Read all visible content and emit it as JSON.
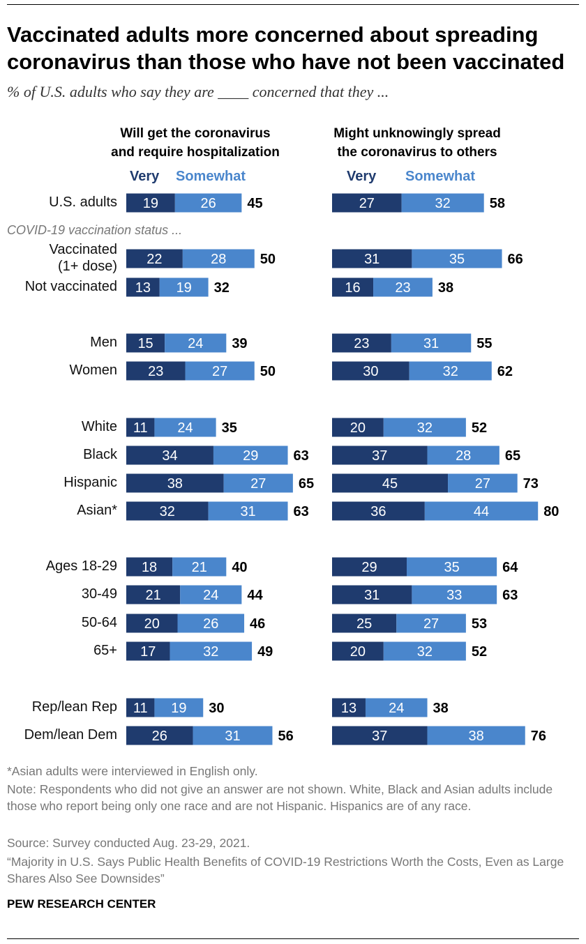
{
  "title": "Vaccinated adults more concerned about spreading coronavirus than those who have not been vaccinated",
  "subtitle": "% of U.S. adults who say they are ____ concerned that they ...",
  "colors": {
    "very": "#1f3b6e",
    "somewhat": "#4a86cc"
  },
  "chart_data": {
    "type": "bar",
    "stacked": true,
    "orientation": "horizontal",
    "panels": [
      {
        "title": "Will get the coronavirus and require hospitalization",
        "title_lines": [
          "Will get the coronavirus",
          "and require hospitalization"
        ]
      },
      {
        "title": "Might unknowingly spread the coronavirus to others",
        "title_lines": [
          "Might unknowingly spread",
          "the coronavirus to others"
        ]
      }
    ],
    "legend": [
      "Very",
      "Somewhat"
    ],
    "group_label": "COVID-19 vaccination status ...",
    "categories": [
      "U.S. adults",
      "Vaccinated (1+ dose)",
      "Not vaccinated",
      "Men",
      "Women",
      "White",
      "Black",
      "Hispanic",
      "Asian*",
      "Ages 18-29",
      "30-49",
      "50-64",
      "65+",
      "Rep/lean Rep",
      "Dem/lean Dem"
    ],
    "rows": [
      {
        "label": [
          "U.S. adults"
        ],
        "hosp": {
          "very": 19,
          "somewhat": 26,
          "total": 45
        },
        "spread": {
          "very": 27,
          "somewhat": 32,
          "total": 58
        }
      },
      {
        "label": [
          "Vaccinated",
          "(1+ dose)"
        ],
        "hosp": {
          "very": 22,
          "somewhat": 28,
          "total": 50
        },
        "spread": {
          "very": 31,
          "somewhat": 35,
          "total": 66
        }
      },
      {
        "label": [
          "Not vaccinated"
        ],
        "hosp": {
          "very": 13,
          "somewhat": 19,
          "total": 32
        },
        "spread": {
          "very": 16,
          "somewhat": 23,
          "total": 38
        }
      },
      {
        "label": [
          "Men"
        ],
        "hosp": {
          "very": 15,
          "somewhat": 24,
          "total": 39
        },
        "spread": {
          "very": 23,
          "somewhat": 31,
          "total": 55
        }
      },
      {
        "label": [
          "Women"
        ],
        "hosp": {
          "very": 23,
          "somewhat": 27,
          "total": 50
        },
        "spread": {
          "very": 30,
          "somewhat": 32,
          "total": 62
        }
      },
      {
        "label": [
          "White"
        ],
        "hosp": {
          "very": 11,
          "somewhat": 24,
          "total": 35
        },
        "spread": {
          "very": 20,
          "somewhat": 32,
          "total": 52
        }
      },
      {
        "label": [
          "Black"
        ],
        "hosp": {
          "very": 34,
          "somewhat": 29,
          "total": 63
        },
        "spread": {
          "very": 37,
          "somewhat": 28,
          "total": 65
        }
      },
      {
        "label": [
          "Hispanic"
        ],
        "hosp": {
          "very": 38,
          "somewhat": 27,
          "total": 65
        },
        "spread": {
          "very": 45,
          "somewhat": 27,
          "total": 73
        }
      },
      {
        "label": [
          "Asian*"
        ],
        "hosp": {
          "very": 32,
          "somewhat": 31,
          "total": 63
        },
        "spread": {
          "very": 36,
          "somewhat": 44,
          "total": 80
        }
      },
      {
        "label": [
          "Ages 18-29"
        ],
        "hosp": {
          "very": 18,
          "somewhat": 21,
          "total": 40
        },
        "spread": {
          "very": 29,
          "somewhat": 35,
          "total": 64
        }
      },
      {
        "label": [
          "30-49"
        ],
        "hosp": {
          "very": 21,
          "somewhat": 24,
          "total": 44
        },
        "spread": {
          "very": 31,
          "somewhat": 33,
          "total": 63
        }
      },
      {
        "label": [
          "50-64"
        ],
        "hosp": {
          "very": 20,
          "somewhat": 26,
          "total": 46
        },
        "spread": {
          "very": 25,
          "somewhat": 27,
          "total": 53
        }
      },
      {
        "label": [
          "65+"
        ],
        "hosp": {
          "very": 17,
          "somewhat": 32,
          "total": 49
        },
        "spread": {
          "very": 20,
          "somewhat": 32,
          "total": 52
        }
      },
      {
        "label": [
          "Rep/lean Rep"
        ],
        "hosp": {
          "very": 11,
          "somewhat": 19,
          "total": 30
        },
        "spread": {
          "very": 13,
          "somewhat": 24,
          "total": 38
        }
      },
      {
        "label": [
          "Dem/lean Dem"
        ],
        "hosp": {
          "very": 26,
          "somewhat": 31,
          "total": 56
        },
        "spread": {
          "very": 37,
          "somewhat": 38,
          "total": 76
        }
      }
    ]
  },
  "footer": {
    "asian_note": "*Asian adults were interviewed in English only.",
    "note": "Note: Respondents who did not give an answer are not shown. White, Black and Asian adults include those who report being only one race and are not Hispanic. Hispanics are of any race.",
    "source": "Source: Survey conducted Aug. 23-29, 2021.",
    "report": "“Majority in U.S. Says Public Health Benefits of COVID-19 Restrictions Worth the Costs, Even as Large Shares Also See Downsides”",
    "brand": "PEW RESEARCH CENTER"
  }
}
